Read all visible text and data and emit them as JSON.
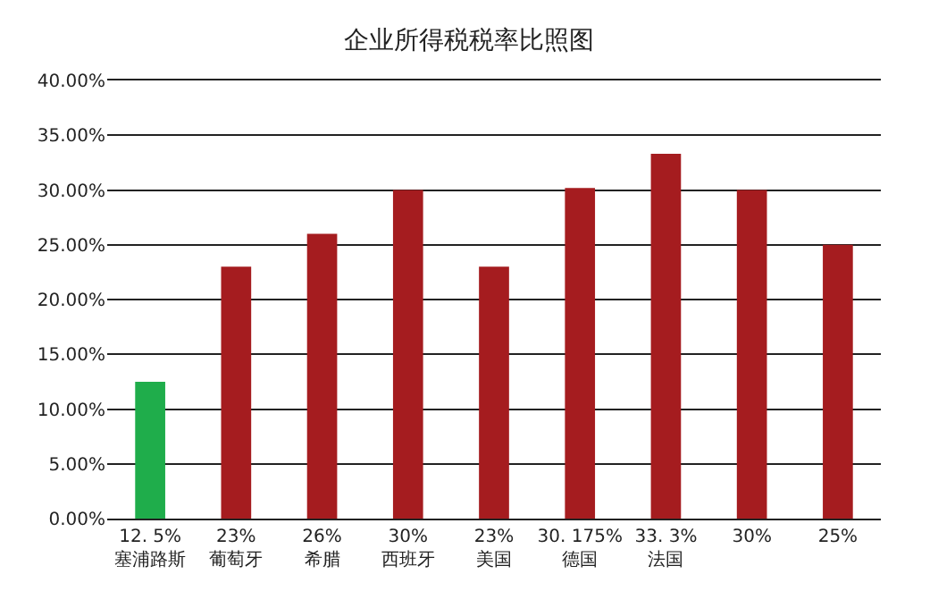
{
  "chart_data": {
    "type": "bar",
    "title": "企业所得税税率比照图",
    "categories": [
      "塞浦路斯",
      "葡萄牙",
      "希腊",
      "西班牙",
      "美国",
      "德国",
      "法国",
      null,
      null
    ],
    "values": [
      12.5,
      23,
      26,
      30,
      23,
      30.175,
      33.3,
      30,
      25
    ],
    "value_labels": [
      "12. 5%",
      "23%",
      "26%",
      "30%",
      "23%",
      "30. 175%",
      "33. 3%",
      "30%",
      "25%"
    ],
    "colors": [
      "#1fad4b",
      "#a51c1f",
      "#a51c1f",
      "#a51c1f",
      "#a51c1f",
      "#a51c1f",
      "#a51c1f",
      "#a51c1f",
      "#a51c1f"
    ],
    "ylim": [
      0,
      40
    ],
    "yticks": [
      {
        "value": 0,
        "label": "0.00%"
      },
      {
        "value": 5,
        "label": "5.00%"
      },
      {
        "value": 10,
        "label": "10.00%"
      },
      {
        "value": 15,
        "label": "15.00%"
      },
      {
        "value": 20,
        "label": "20.00%"
      },
      {
        "value": 25,
        "label": "25.00%"
      },
      {
        "value": 30,
        "label": "30.00%"
      },
      {
        "value": 35,
        "label": "35.00%"
      },
      {
        "value": 40,
        "label": "40.00%"
      }
    ],
    "grid": "y"
  }
}
